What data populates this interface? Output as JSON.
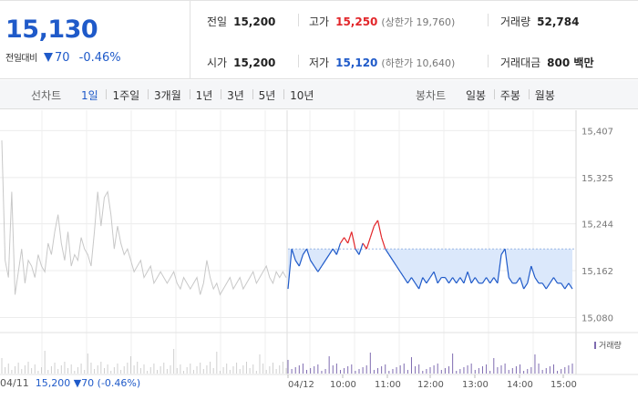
{
  "header": {
    "price": "15,130",
    "change_label": "전일대비",
    "change_value": "70",
    "change_pct": "-0.46%",
    "prev_close": {
      "label": "전일",
      "value": "15,200"
    },
    "high": {
      "label": "고가",
      "value": "15,250",
      "sub": "(상한가 19,760)"
    },
    "volume": {
      "label": "거래량",
      "value": "52,784"
    },
    "open": {
      "label": "시가",
      "value": "15,200"
    },
    "low": {
      "label": "저가",
      "value": "15,120",
      "sub": "(하한가 10,640)"
    },
    "amount": {
      "label": "거래대금",
      "value": "800 백만"
    }
  },
  "tabs": {
    "line_title": "선차트",
    "line_tabs": [
      "1일",
      "1주일",
      "3개월",
      "1년",
      "3년",
      "5년",
      "10년"
    ],
    "line_active": "1일",
    "candle_title": "봉차트",
    "candle_tabs": [
      "일봉",
      "주봉",
      "월봉"
    ]
  },
  "chart_data": {
    "type": "line",
    "y_ticks": [
      "15,407",
      "15,325",
      "15,244",
      "15,162",
      "15,080"
    ],
    "y_tick_values": [
      15407,
      15325,
      15244,
      15162,
      15080
    ],
    "ylim": [
      15060,
      15430
    ],
    "x_labels": [
      "04/11",
      "04/12",
      "10:00",
      "11:00",
      "12:00",
      "13:00",
      "14:00",
      "15:00"
    ],
    "reference_price": 15200,
    "prev_day_series": {
      "name": "04/11",
      "values": [
        15390,
        15180,
        15150,
        15300,
        15120,
        15160,
        15200,
        15140,
        15180,
        15170,
        15150,
        15190,
        15170,
        15160,
        15210,
        15190,
        15230,
        15260,
        15210,
        15180,
        15230,
        15170,
        15190,
        15180,
        15220,
        15200,
        15190,
        15170,
        15230,
        15300,
        15240,
        15290,
        15300,
        15260,
        15200,
        15240,
        15210,
        15190,
        15200,
        15180,
        15160,
        15170,
        15180,
        15150,
        15160,
        15170,
        15140,
        15150,
        15160,
        15150,
        15140,
        15150,
        15160,
        15140,
        15130,
        15150,
        15140,
        15130,
        15140,
        15150,
        15120,
        15140,
        15180,
        15150,
        15130,
        15140,
        15120,
        15130,
        15140,
        15150,
        15130,
        15140,
        15150,
        15130,
        15140,
        15150,
        15160,
        15140,
        15150,
        15160,
        15170,
        15150,
        15140,
        15160,
        15150,
        15160,
        15150
      ]
    },
    "today_series": {
      "name": "04/12",
      "values": [
        15130,
        15200,
        15180,
        15170,
        15190,
        15200,
        15180,
        15170,
        15160,
        15170,
        15180,
        15190,
        15200,
        15190,
        15210,
        15220,
        15210,
        15230,
        15200,
        15190,
        15210,
        15200,
        15220,
        15240,
        15250,
        15220,
        15200,
        15190,
        15180,
        15170,
        15160,
        15150,
        15140,
        15150,
        15140,
        15130,
        15150,
        15140,
        15150,
        15160,
        15140,
        15150,
        15150,
        15140,
        15150,
        15140,
        15150,
        15140,
        15160,
        15140,
        15150,
        15140,
        15140,
        15150,
        15140,
        15150,
        15140,
        15190,
        15200,
        15150,
        15140,
        15140,
        15150,
        15130,
        15140,
        15170,
        15150,
        15140,
        15140,
        15130,
        15140,
        15150,
        15140,
        15140,
        15130,
        15140,
        15130
      ]
    },
    "volume_legend": "거래량",
    "footer_date": "04/11",
    "footer_price": "15,200",
    "footer_change": "70",
    "footer_pct": "(-0.46%)"
  },
  "colors": {
    "up": "#e2262a",
    "down": "#1f5ac9",
    "prev": "#c8c8c8",
    "volume": "#7e6bb0",
    "fill": "#dbe8fb"
  }
}
